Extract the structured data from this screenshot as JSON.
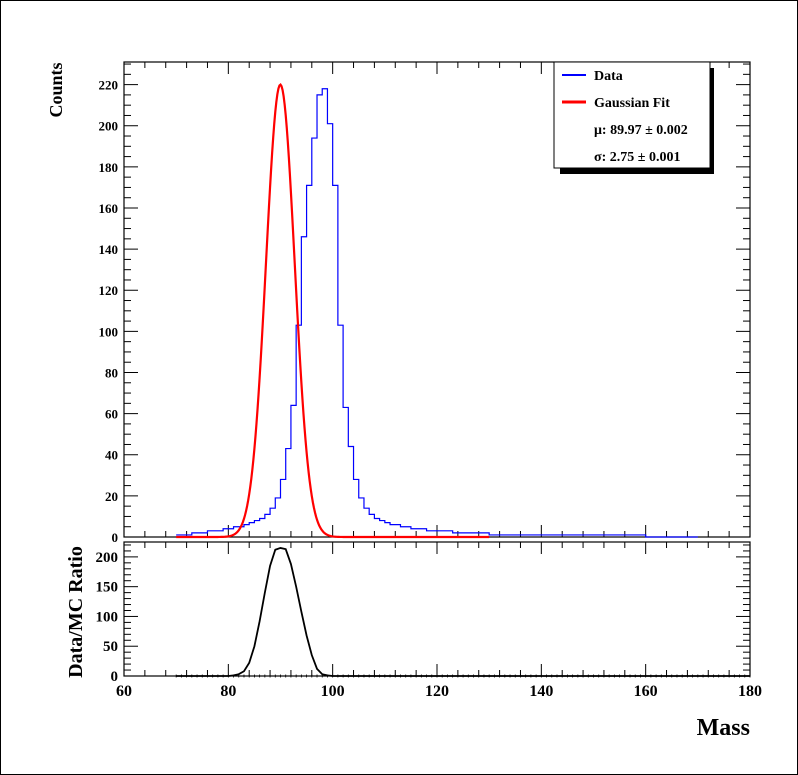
{
  "chart_data": [
    {
      "panel": "main",
      "type": "line",
      "xlabel": "",
      "ylabel": "Counts",
      "xlim": [
        60,
        180
      ],
      "ylim": [
        0,
        231
      ],
      "yticks": [
        0,
        20,
        40,
        60,
        80,
        100,
        120,
        140,
        160,
        180,
        200,
        220
      ],
      "legend": {
        "placement": "top-right",
        "entries": [
          {
            "label": "Data",
            "color": "#0000ff"
          },
          {
            "label": "Gaussian Fit",
            "color": "#ff0000"
          }
        ],
        "mu_text": "μ: 89.97 ± 0.002",
        "sigma_text": "σ: 2.75 ± 0.001"
      },
      "series": [
        {
          "name": "Data",
          "style": "step",
          "color": "#0000ff",
          "bin_width": 1,
          "x_start": 70,
          "values": [
            1,
            1,
            1,
            2,
            2,
            2,
            3,
            3,
            3,
            4,
            4,
            5,
            5,
            6,
            7,
            8,
            9,
            11,
            14,
            19,
            28,
            43,
            64,
            103,
            146,
            171,
            194,
            215,
            218,
            201,
            171,
            103,
            63,
            44,
            28,
            19,
            14,
            11,
            9,
            8,
            7,
            6,
            6,
            5,
            5,
            4,
            4,
            4,
            3,
            3,
            3,
            3,
            3,
            2,
            2,
            2,
            2,
            2,
            2,
            2,
            1,
            1,
            1,
            1,
            1,
            1,
            1,
            1,
            1,
            1,
            1,
            1,
            1,
            1,
            1,
            1,
            1,
            1,
            1,
            1,
            1,
            1,
            1,
            1,
            1,
            1,
            1,
            1,
            1,
            1,
            0,
            0,
            0,
            0,
            0,
            0,
            0,
            0,
            0,
            0
          ]
        },
        {
          "name": "Gaussian Fit",
          "style": "curve",
          "color": "#ff0000",
          "function": "gaussian",
          "amplitude": 220,
          "mu": 89.97,
          "sigma": 2.75,
          "x_range": [
            70,
            130
          ]
        }
      ]
    },
    {
      "panel": "ratio",
      "type": "line",
      "xlabel": "Mass",
      "ylabel": "Data/MC Ratio",
      "xlim": [
        60,
        180
      ],
      "ylim": [
        0,
        225
      ],
      "xticks": [
        60,
        80,
        100,
        120,
        140,
        160,
        180
      ],
      "yticks": [
        0,
        50,
        100,
        150,
        200
      ],
      "series": [
        {
          "name": "",
          "color": "#000000",
          "x": [
            70,
            80,
            81,
            82,
            83,
            84,
            85,
            86,
            87,
            88,
            89,
            90,
            91,
            92,
            93,
            94,
            95,
            96,
            97,
            98,
            99,
            100,
            110,
            120,
            130,
            140,
            150,
            160,
            170,
            180
          ],
          "values": [
            0,
            0,
            1,
            3,
            8,
            22,
            50,
            92,
            140,
            185,
            212,
            215,
            213,
            188,
            150,
            108,
            68,
            35,
            12,
            3,
            1,
            0,
            0,
            0,
            0,
            0,
            0,
            0,
            0,
            0
          ]
        }
      ]
    }
  ]
}
